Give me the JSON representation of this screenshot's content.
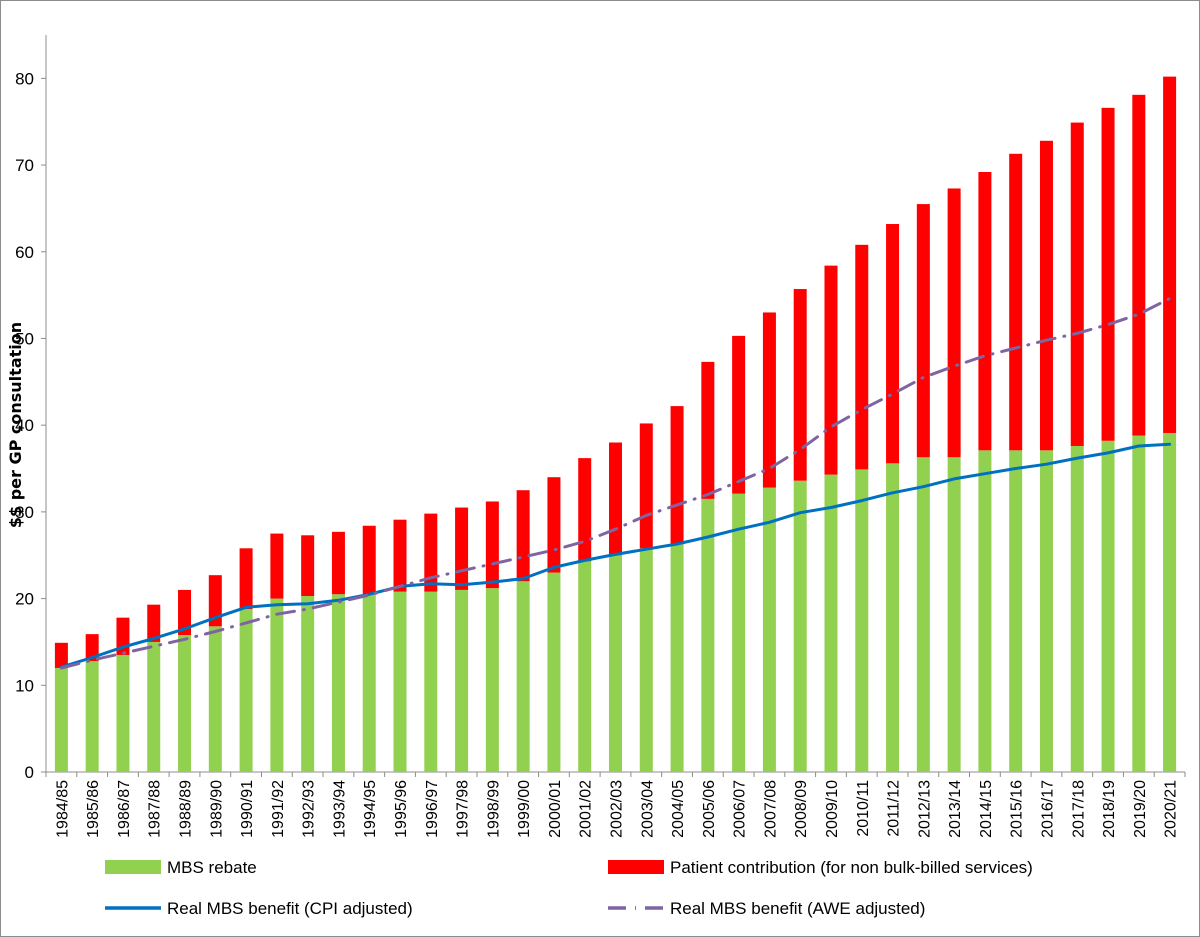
{
  "chart_data": {
    "type": "bar",
    "stacked": true,
    "ylabel": "$$ per GP consultation",
    "xlabel": "",
    "title": "",
    "ylim": [
      0,
      85
    ],
    "yticks": [
      0,
      10,
      20,
      30,
      40,
      50,
      60,
      70,
      80
    ],
    "grid": false,
    "legend_position": "bottom",
    "categories": [
      "1984/85",
      "1985/86",
      "1986/87",
      "1987/88",
      "1988/89",
      "1989/90",
      "1990/91",
      "1991/92",
      "1992/93",
      "1993/94",
      "1994/95",
      "1995/96",
      "1996/97",
      "1997/98",
      "1998/99",
      "1999/00",
      "2000/01",
      "2001/02",
      "2002/03",
      "2003/04",
      "2004/05",
      "2005/06",
      "2006/07",
      "2007/08",
      "2008/09",
      "2009/10",
      "2010/11",
      "2011/12",
      "2012/13",
      "2013/14",
      "2014/15",
      "2015/16",
      "2016/17",
      "2017/18",
      "2018/19",
      "2019/20",
      "2020/21"
    ],
    "series": [
      {
        "name": "MBS rebate",
        "kind": "bar",
        "color": "#92d050",
        "values": [
          12.0,
          12.8,
          13.5,
          15.0,
          15.8,
          16.8,
          18.8,
          20.0,
          20.3,
          20.5,
          20.5,
          20.8,
          20.8,
          21.0,
          21.2,
          22.0,
          23.0,
          24.3,
          25.0,
          25.8,
          26.3,
          31.5,
          32.1,
          32.8,
          33.6,
          34.3,
          34.9,
          35.6,
          36.3,
          36.3,
          37.1,
          37.1,
          37.1,
          37.6,
          38.2,
          38.8,
          39.1
        ]
      },
      {
        "name": "Patient contribution (for non bulk-billed services)",
        "kind": "bar",
        "color": "#ff0000",
        "values": [
          2.9,
          3.1,
          4.3,
          4.3,
          5.2,
          5.9,
          7.0,
          7.5,
          7.0,
          7.2,
          7.9,
          8.3,
          9.0,
          9.5,
          10.0,
          10.5,
          11.0,
          11.9,
          13.0,
          14.4,
          15.9,
          15.8,
          18.2,
          20.2,
          22.1,
          24.1,
          25.9,
          27.6,
          29.2,
          31.0,
          32.1,
          34.2,
          35.7,
          37.3,
          38.4,
          39.3,
          41.1
        ]
      },
      {
        "name": "Real MBS benefit (CPI adjusted)",
        "kind": "line",
        "color": "#0070c0",
        "values": [
          12.1,
          13.2,
          14.4,
          15.4,
          16.5,
          17.8,
          19.0,
          19.3,
          19.4,
          19.8,
          20.5,
          21.4,
          21.7,
          21.6,
          21.9,
          22.3,
          23.6,
          24.4,
          25.1,
          25.7,
          26.3,
          27.1,
          28.0,
          28.8,
          29.9,
          30.5,
          31.3,
          32.2,
          32.9,
          33.8,
          34.4,
          35.0,
          35.5,
          36.2,
          36.8,
          37.6,
          37.8
        ]
      },
      {
        "name": "Real MBS benefit (AWE adjusted)",
        "kind": "line",
        "dash": "dash-dot",
        "color": "#8064a2",
        "values": [
          12.0,
          12.9,
          13.7,
          14.5,
          15.3,
          16.2,
          17.2,
          18.2,
          18.8,
          19.6,
          20.4,
          21.4,
          22.4,
          23.2,
          24.0,
          24.8,
          25.6,
          26.6,
          28.0,
          29.6,
          30.8,
          32.0,
          33.5,
          35.0,
          37.2,
          39.8,
          41.8,
          43.6,
          45.5,
          46.8,
          48.0,
          48.9,
          49.8,
          50.6,
          51.6,
          52.8,
          54.6
        ]
      }
    ]
  }
}
